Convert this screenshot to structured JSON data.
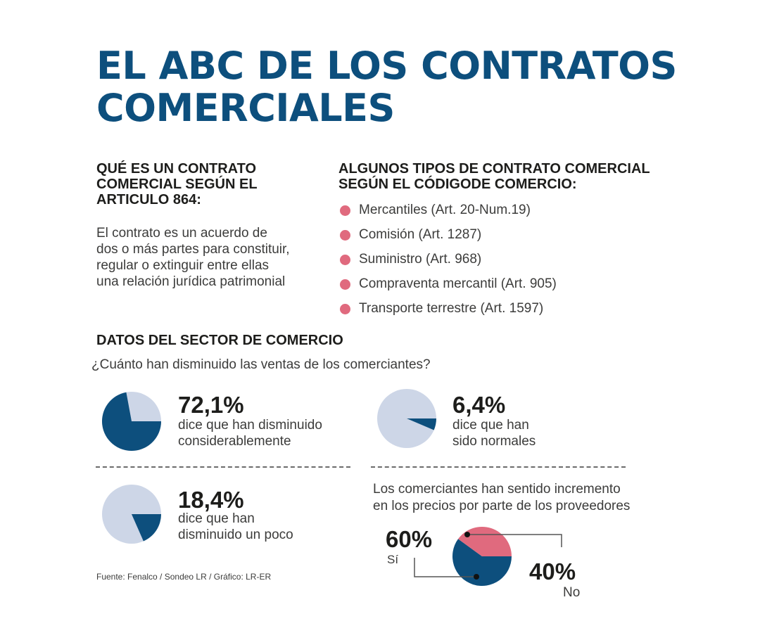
{
  "title": {
    "line1": "EL ABC DE LOS CONTRATOS",
    "line2": "COMERCIALES"
  },
  "definition": {
    "heading_lines": [
      "QUÉ ES UN CONTRATO",
      "COMERCIAL SEGÚN EL",
      "ARTICULO 864:"
    ],
    "text_lines": [
      "El contrato es un acuerdo de",
      "dos o más  partes para constituir,",
      "regular o extinguir entre ellas",
      "una relación jurídica patrimonial"
    ]
  },
  "types": {
    "heading_lines": [
      "ALGUNOS TIPOS DE CONTRATO COMERCIAL",
      "SEGÚN EL CÓDIGODE COMERCIO:"
    ],
    "items": [
      "Mercantiles (Art. 20-Num.19)",
      "Comisión (Art. 1287)",
      "Suministro (Art. 968)",
      "Compraventa mercantil (Art. 905)",
      "Transporte terrestre (Art. 1597)"
    ]
  },
  "sector": {
    "title": "DATOS DEL SECTOR DE COMERCIO",
    "question": "¿Cuánto han disminuido las ventas de los comerciantes?"
  },
  "prices_question_lines": [
    "Los comerciantes han sentido incremento",
    "en los precios por parte de los proveedores"
  ],
  "source": "Fuente: Fenalco / Sondeo LR / Gráfico: LR-ER",
  "colors": {
    "dark_blue": "#0d4f7d",
    "light_blue": "#cdd6e7",
    "pink": "#e06a7e",
    "title": "#0d4f7d"
  },
  "chart_data": [
    {
      "type": "pie",
      "title": "¿Cuánto han disminuido las ventas de los comerciantes?",
      "label": "72,1%",
      "value": 72.1,
      "description_lines": [
        "dice que han disminuido",
        "considerablemente"
      ]
    },
    {
      "type": "pie",
      "title": "¿Cuánto han disminuido las ventas de los comerciantes?",
      "label": "6,4%",
      "value": 6.4,
      "description_lines": [
        "dice que han",
        "sido normales"
      ]
    },
    {
      "type": "pie",
      "title": "¿Cuánto han disminuido las ventas de los comerciantes?",
      "label": "18,4%",
      "value": 18.4,
      "description_lines": [
        "dice que han",
        "disminuido un poco"
      ]
    },
    {
      "type": "pie",
      "title": "Los comerciantes han sentido incremento en los precios por parte de los proveedores",
      "categories": [
        "Sí",
        "No"
      ],
      "values": [
        60,
        40
      ],
      "labels": [
        "60%",
        "40%"
      ]
    }
  ]
}
